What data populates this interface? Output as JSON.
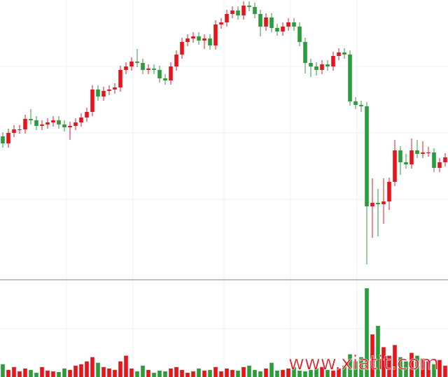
{
  "chart_data": {
    "type": "candlestick",
    "up_color": "#e8141c",
    "down_color": "#2a9d3a",
    "ylim": [
      0,
      400
    ],
    "volume_ylim": [
      0,
      135
    ],
    "open": [
      205,
      195,
      210,
      215,
      215,
      230,
      228,
      220,
      222,
      225,
      228,
      222,
      218,
      220,
      225,
      232,
      240,
      272,
      262,
      270,
      272,
      275,
      300,
      305,
      312,
      310,
      300,
      302,
      300,
      288,
      285,
      305,
      322,
      340,
      345,
      348,
      342,
      345,
      335,
      365,
      368,
      380,
      385,
      378,
      392,
      390,
      380,
      362,
      375,
      360,
      355,
      362,
      368,
      362,
      340,
      310,
      305,
      300,
      308,
      305,
      320,
      325,
      322,
      255,
      250,
      248,
      105,
      110,
      108,
      112,
      140,
      185,
      168,
      165,
      185,
      180,
      182,
      182,
      160,
      168
    ],
    "high": [
      211,
      216,
      221,
      221,
      236,
      244,
      234,
      228,
      231,
      234,
      234,
      228,
      226,
      231,
      238,
      246,
      278,
      278,
      276,
      278,
      281,
      306,
      311,
      318,
      330,
      316,
      308,
      308,
      306,
      294,
      311,
      328,
      346,
      351,
      354,
      354,
      351,
      351,
      371,
      374,
      386,
      391,
      391,
      398,
      398,
      396,
      386,
      381,
      381,
      366,
      368,
      374,
      374,
      368,
      346,
      316,
      311,
      314,
      314,
      326,
      331,
      331,
      328,
      261,
      256,
      254,
      145,
      130,
      145,
      146,
      200,
      191,
      180,
      202,
      200,
      198,
      190,
      188,
      174,
      181
    ],
    "low": [
      189,
      189,
      204,
      209,
      209,
      222,
      214,
      214,
      216,
      219,
      216,
      212,
      200,
      214,
      219,
      226,
      234,
      256,
      256,
      264,
      266,
      269,
      294,
      299,
      304,
      294,
      294,
      294,
      282,
      279,
      279,
      299,
      316,
      334,
      339,
      336,
      330,
      329,
      329,
      359,
      362,
      374,
      372,
      372,
      384,
      374,
      348,
      356,
      354,
      349,
      349,
      356,
      356,
      334,
      295,
      290,
      292,
      294,
      299,
      299,
      314,
      316,
      249,
      244,
      240,
      22,
      60,
      62,
      80,
      100,
      134,
      150,
      159,
      159,
      174,
      174,
      176,
      154,
      154,
      162
    ],
    "close": [
      195,
      210,
      215,
      215,
      230,
      228,
      220,
      222,
      225,
      228,
      222,
      218,
      220,
      225,
      232,
      240,
      272,
      262,
      270,
      272,
      275,
      300,
      305,
      312,
      310,
      300,
      302,
      300,
      288,
      285,
      305,
      322,
      340,
      345,
      348,
      342,
      345,
      335,
      365,
      368,
      380,
      385,
      378,
      392,
      390,
      380,
      362,
      375,
      360,
      355,
      362,
      368,
      362,
      340,
      310,
      305,
      300,
      308,
      305,
      320,
      325,
      322,
      255,
      250,
      248,
      105,
      110,
      108,
      112,
      140,
      185,
      168,
      165,
      185,
      180,
      182,
      182,
      160,
      168,
      175
    ],
    "volume": [
      18,
      10,
      14,
      8,
      12,
      10,
      6,
      14,
      9,
      8,
      7,
      12,
      10,
      16,
      18,
      22,
      28,
      20,
      14,
      12,
      10,
      22,
      30,
      12,
      8,
      16,
      10,
      6,
      9,
      8,
      12,
      14,
      10,
      6,
      8,
      12,
      9,
      10,
      14,
      8,
      12,
      10,
      9,
      14,
      16,
      10,
      8,
      12,
      20,
      9,
      10,
      12,
      14,
      9,
      8,
      10,
      12,
      14,
      10,
      9,
      12,
      16,
      32,
      22,
      28,
      125,
      60,
      72,
      42,
      30,
      45,
      28,
      22,
      34,
      30,
      26,
      22,
      18,
      24,
      16
    ],
    "watermark": "www.xiatit.com"
  }
}
